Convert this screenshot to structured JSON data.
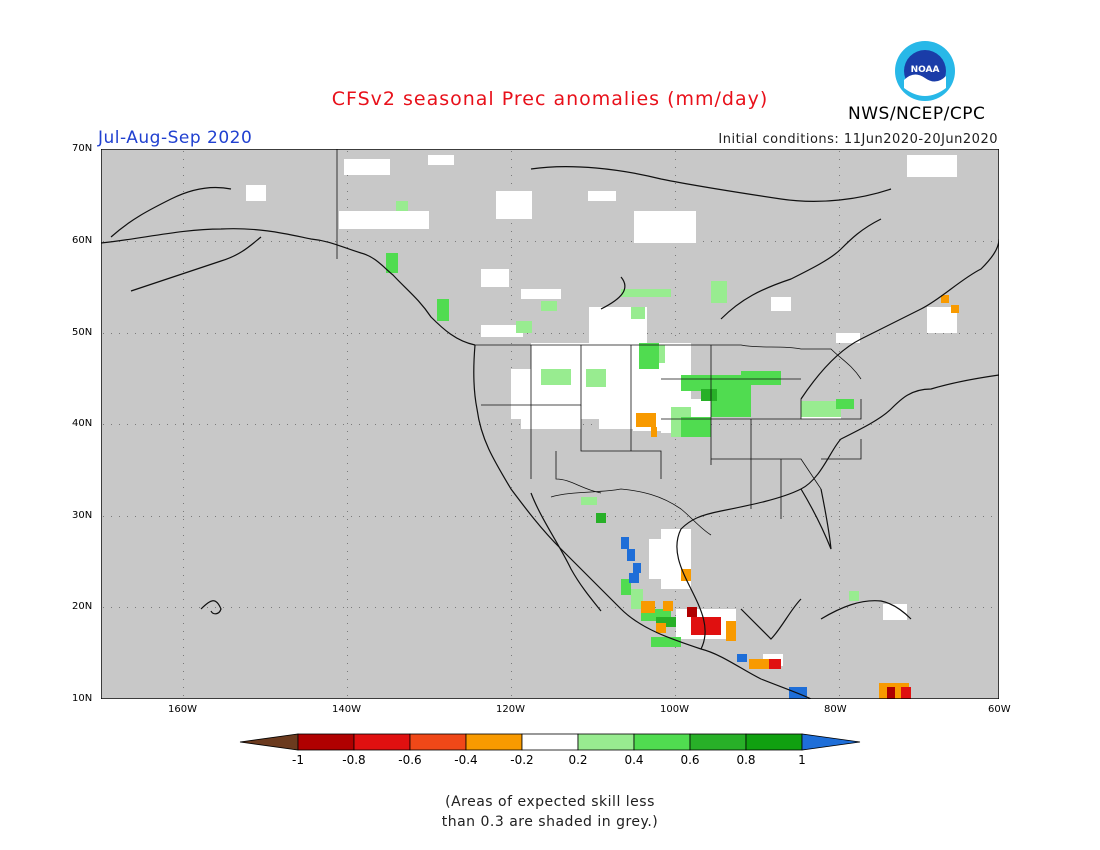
{
  "header": {
    "title": "CFSv2 seasonal Prec anomalies (mm/day)",
    "season": "Jul-Aug-Sep 2020",
    "initial_conditions": "Initial conditions: 11Jun2020-20Jun2020",
    "agency": "NWS/NCEP/CPC",
    "logo_text": "NOAA"
  },
  "map": {
    "lat_labels": [
      "70N",
      "60N",
      "50N",
      "40N",
      "30N",
      "20N",
      "10N"
    ],
    "lon_labels": [
      "160W",
      "140W",
      "120W",
      "100W",
      "80W",
      "60W"
    ],
    "background_color": "#c8c8c8",
    "no_anomaly_color": "#ffffff",
    "extent": {
      "lon": [
        -170,
        -60
      ],
      "lat": [
        10,
        70
      ]
    }
  },
  "colorbar": {
    "tick_labels": [
      "-1",
      "-0.8",
      "-0.6",
      "-0.4",
      "-0.2",
      "0.2",
      "0.4",
      "0.6",
      "0.8",
      "1"
    ],
    "colors": [
      "#6b3a1e",
      "#b00000",
      "#e01010",
      "#f04818",
      "#f89a00",
      "#ffffff",
      "#98ec90",
      "#50dc50",
      "#28b028",
      "#10a010",
      "#1e6ed8"
    ]
  },
  "footnote": {
    "line1": "(Areas of expected skill less",
    "line2": "than 0.3 are shaded in grey.)"
  }
}
